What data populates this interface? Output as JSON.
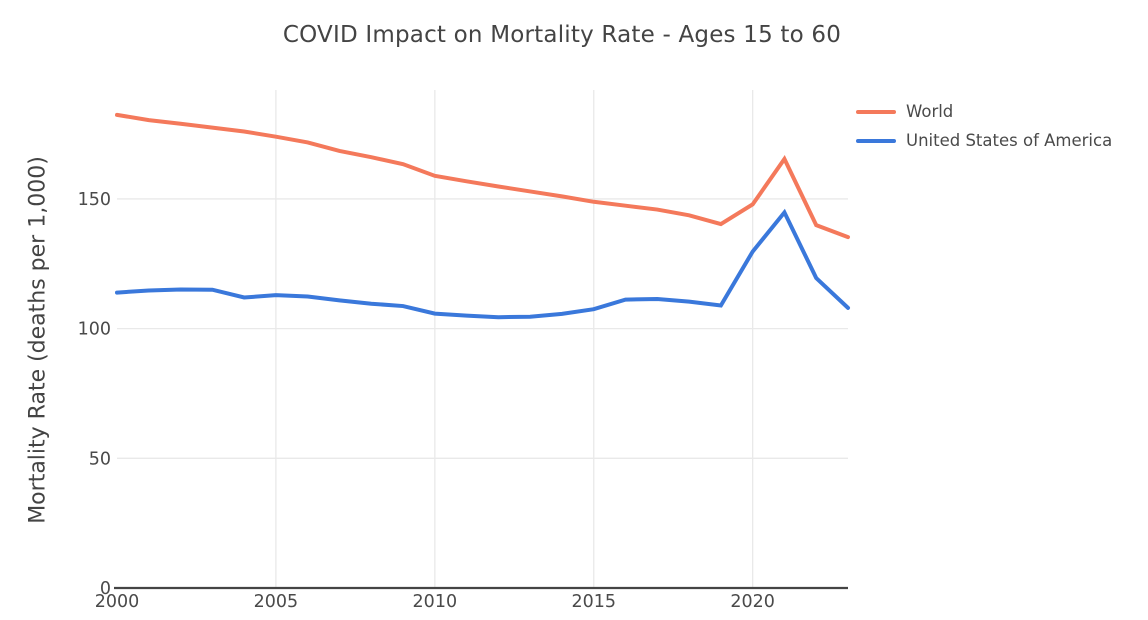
{
  "chart_data": {
    "type": "line",
    "title": "COVID Impact on Mortality Rate - Ages 15 to 60",
    "xlabel": "",
    "ylabel": "Mortality Rate (deaths per 1,000)",
    "x": [
      2000,
      2001,
      2002,
      2003,
      2004,
      2005,
      2006,
      2007,
      2008,
      2009,
      2010,
      2011,
      2012,
      2013,
      2014,
      2015,
      2016,
      2017,
      2018,
      2019,
      2020,
      2021,
      2022,
      2023
    ],
    "series": [
      {
        "name": "World",
        "color": "#F4795B",
        "values": [
          182.4,
          180.4,
          179.0,
          177.5,
          176.0,
          174.0,
          171.8,
          168.5,
          166.1,
          163.4,
          158.9,
          156.8,
          154.8,
          152.9,
          151.0,
          148.9,
          147.4,
          145.9,
          143.7,
          140.3,
          147.9,
          165.4,
          139.9,
          135.3
        ]
      },
      {
        "name": "United States of America",
        "color": "#3A78DB",
        "values": [
          113.9,
          114.7,
          115.1,
          115.0,
          112.0,
          112.9,
          112.4,
          110.9,
          109.6,
          108.7,
          105.8,
          105.0,
          104.4,
          104.6,
          105.7,
          107.5,
          111.2,
          111.4,
          110.4,
          108.9,
          129.7,
          144.8,
          119.5,
          108.0
        ]
      }
    ],
    "x_ticks": [
      2000,
      2005,
      2010,
      2015,
      2020
    ],
    "y_ticks": [
      0,
      50,
      100,
      150
    ],
    "xlim": [
      2000,
      2023
    ],
    "ylim": [
      0,
      192
    ],
    "grid": "on",
    "legend_position": "top-right",
    "style": {
      "background": "#ffffff",
      "gridline_color": "#e9e9e9",
      "axis_line_color": "#444444",
      "text_color": "#444444"
    }
  }
}
